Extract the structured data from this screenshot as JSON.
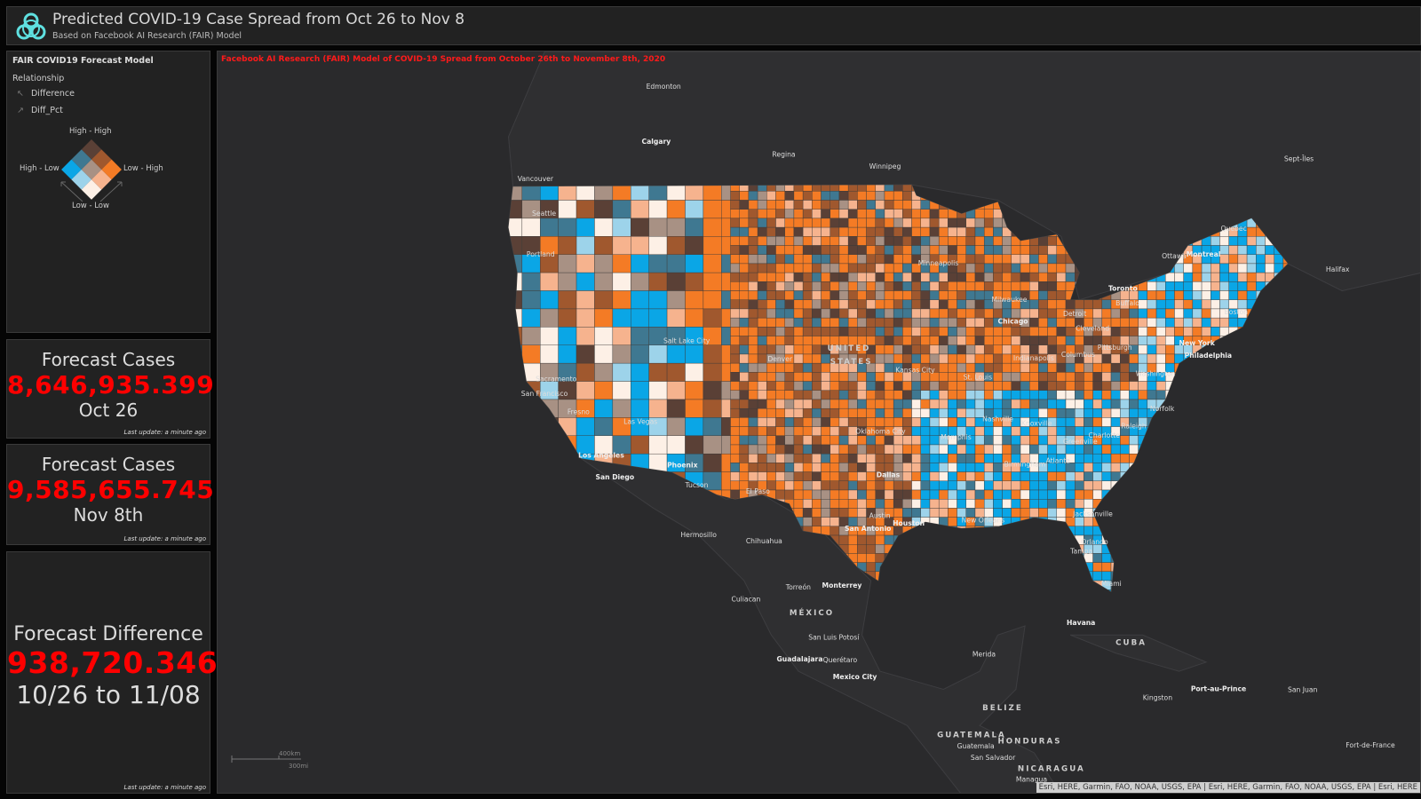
{
  "header": {
    "title": "Predicted COVID-19 Case Spread from Oct 26 to Nov 8",
    "subtitle": "Based on Facebook AI Research (FAIR) Model",
    "icon": "biohazard-icon",
    "icon_color": "#5fe0e0"
  },
  "legend": {
    "title": "FAIR COVID19 Forecast Model",
    "relationship_label": "Relationship",
    "fields": [
      {
        "label": "Difference",
        "icon": "arrow-up-left-icon"
      },
      {
        "label": "Diff_Pct",
        "icon": "arrow-up-right-icon"
      }
    ],
    "corners": {
      "top": "High - High",
      "left": "High - Low",
      "right": "Low - High",
      "bottom": "Low - Low"
    },
    "colors": {
      "high_high": "#5a4036",
      "mid_left_top": "#3f7891",
      "mid_right_top": "#a0582e",
      "high_low": "#0aa6e6",
      "center": "#a89184",
      "low_high": "#f47b25",
      "mid_left_bottom": "#9dd3ea",
      "mid_right_bottom": "#f6b38e",
      "low_low": "#fdf0e6"
    }
  },
  "cards": [
    {
      "title": "Forecast Cases",
      "value": "8,646,935.399",
      "subtitle": "Oct 26",
      "updated": "Last update: a minute ago"
    },
    {
      "title": "Forecast Cases",
      "value": "9,585,655.745",
      "subtitle": "Nov 8th",
      "updated": "Last update: a minute ago"
    },
    {
      "title": "Forecast Difference",
      "value": "938,720.346",
      "subtitle": "10/26 to 11/08",
      "updated": "Last update: a minute ago"
    }
  ],
  "accent_color": "#ff0000",
  "map": {
    "title": "Facebook AI Research (FAIR) Model of COVID-19 Spread from October 26th to November 8th, 2020",
    "attribution": "Esri, HERE, Garmin, FAO, NOAA, USGS, EPA | Esri, HERE, Garmin, FAO, NOAA, USGS, EPA | Esri, HERE",
    "scale": {
      "km": "400km",
      "mi": "300mi"
    },
    "cities": [
      {
        "name": "Edmonton"
      },
      {
        "name": "Calgary"
      },
      {
        "name": "Regina"
      },
      {
        "name": "Winnipeg"
      },
      {
        "name": "Vancouver"
      },
      {
        "name": "Sept-Îles"
      },
      {
        "name": "Quebec"
      },
      {
        "name": "Montreal"
      },
      {
        "name": "Ottawa"
      },
      {
        "name": "Halifax"
      },
      {
        "name": "Toronto"
      },
      {
        "name": "Seattle"
      },
      {
        "name": "Portland"
      },
      {
        "name": "Minneapolis"
      },
      {
        "name": "Milwaukee"
      },
      {
        "name": "Chicago"
      },
      {
        "name": "Detroit"
      },
      {
        "name": "Boston"
      },
      {
        "name": "New York"
      },
      {
        "name": "Philadelphia"
      },
      {
        "name": "Washington"
      },
      {
        "name": "Pittsburgh"
      },
      {
        "name": "Cleveland"
      },
      {
        "name": "Columbus"
      },
      {
        "name": "Indianapolis"
      },
      {
        "name": "Salt Lake City"
      },
      {
        "name": "Denver"
      },
      {
        "name": "Kansas City"
      },
      {
        "name": "St. Louis"
      },
      {
        "name": "Sacramento"
      },
      {
        "name": "San Francisco"
      },
      {
        "name": "Fresno"
      },
      {
        "name": "Las Vegas"
      },
      {
        "name": "Los Angeles"
      },
      {
        "name": "San Diego"
      },
      {
        "name": "Phoenix"
      },
      {
        "name": "Tucson"
      },
      {
        "name": "El Paso"
      },
      {
        "name": "Oklahoma City"
      },
      {
        "name": "Dallas"
      },
      {
        "name": "Austin"
      },
      {
        "name": "San Antonio"
      },
      {
        "name": "Houston"
      },
      {
        "name": "New Orleans"
      },
      {
        "name": "Memphis"
      },
      {
        "name": "Nashville"
      },
      {
        "name": "Knoxville"
      },
      {
        "name": "Atlanta"
      },
      {
        "name": "Birmingham"
      },
      {
        "name": "Charlotte"
      },
      {
        "name": "Raleigh"
      },
      {
        "name": "Norfolk"
      },
      {
        "name": "Greenville"
      },
      {
        "name": "Jacksonville"
      },
      {
        "name": "Tampa"
      },
      {
        "name": "Orlando"
      },
      {
        "name": "Miami"
      },
      {
        "name": "Hermosillo"
      },
      {
        "name": "Chihuahua"
      },
      {
        "name": "Torreón"
      },
      {
        "name": "Monterrey"
      },
      {
        "name": "Culiacan"
      },
      {
        "name": "San Luis Potosí"
      },
      {
        "name": "Guadalajara"
      },
      {
        "name": "Querétaro"
      },
      {
        "name": "Mexico City"
      },
      {
        "name": "Merida"
      },
      {
        "name": "Havana"
      },
      {
        "name": "Kingston"
      },
      {
        "name": "Port-au-Prince"
      },
      {
        "name": "San Juan"
      },
      {
        "name": "Fort-de-France"
      },
      {
        "name": "Guatemala"
      },
      {
        "name": "San Salvador"
      },
      {
        "name": "Managua"
      },
      {
        "name": "Buffalo"
      }
    ],
    "countries": [
      {
        "name": "UNITED"
      },
      {
        "name": "STATES"
      },
      {
        "name": "MÉXICO"
      },
      {
        "name": "CUBA"
      },
      {
        "name": "BELIZE"
      },
      {
        "name": "GUATEMALA"
      },
      {
        "name": "HONDURAS"
      },
      {
        "name": "NICARAGUA"
      }
    ]
  }
}
